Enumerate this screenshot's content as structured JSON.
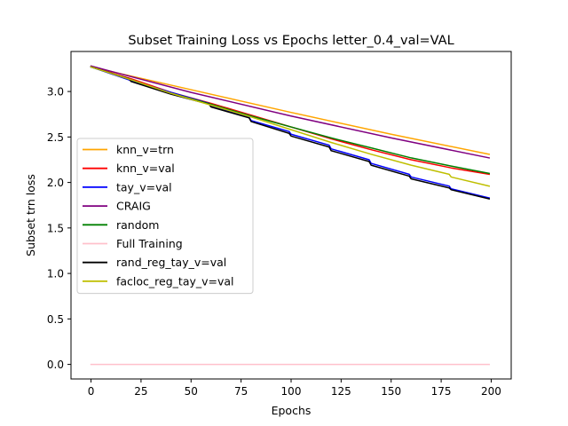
{
  "chart_data": {
    "type": "line",
    "title": "Subset Training Loss vs Epochs letter_0.4_val=VAL",
    "xlabel": "Epochs",
    "ylabel": "Subset trn loss",
    "xlim": [
      -10,
      210
    ],
    "ylim": [
      -0.16,
      3.44
    ],
    "xticks": [
      0,
      25,
      50,
      75,
      100,
      125,
      150,
      175,
      200
    ],
    "yticks": [
      0.0,
      0.5,
      1.0,
      1.5,
      2.0,
      2.5,
      3.0
    ],
    "xtick_labels": [
      "0",
      "25",
      "50",
      "75",
      "100",
      "125",
      "150",
      "175",
      "200"
    ],
    "ytick_labels": [
      "0.0",
      "0.5",
      "1.0",
      "1.5",
      "2.0",
      "2.5",
      "3.0"
    ],
    "grid": false,
    "legend_position": "center-left",
    "series": [
      {
        "name": "knn_v=trn",
        "color": "#ffa500",
        "x": [
          0,
          50,
          100,
          150,
          199
        ],
        "y": [
          3.27,
          3.02,
          2.77,
          2.53,
          2.31
        ]
      },
      {
        "name": "knn_v=val",
        "color": "#ff0000",
        "x": [
          0,
          20,
          40,
          60,
          80,
          100,
          120,
          140,
          160,
          180,
          199
        ],
        "y": [
          3.27,
          3.14,
          2.99,
          2.87,
          2.74,
          2.61,
          2.48,
          2.36,
          2.25,
          2.16,
          2.09
        ]
      },
      {
        "name": "tay_v=val",
        "color": "#0000ff",
        "x": [
          0,
          20,
          40,
          59,
          60,
          79,
          80,
          99,
          100,
          119,
          120,
          139,
          140,
          159,
          160,
          179,
          180,
          199
        ],
        "y": [
          3.27,
          3.12,
          2.99,
          2.87,
          2.84,
          2.72,
          2.68,
          2.56,
          2.53,
          2.41,
          2.37,
          2.25,
          2.21,
          2.09,
          2.06,
          1.96,
          1.93,
          1.83
        ]
      },
      {
        "name": "CRAIG",
        "color": "#800080",
        "x": [
          0,
          50,
          100,
          150,
          199
        ],
        "y": [
          3.28,
          2.99,
          2.73,
          2.49,
          2.27
        ]
      },
      {
        "name": "random",
        "color": "#008000",
        "x": [
          0,
          20,
          40,
          60,
          80,
          100,
          120,
          140,
          160,
          180,
          199
        ],
        "y": [
          3.27,
          3.13,
          2.98,
          2.86,
          2.73,
          2.61,
          2.49,
          2.38,
          2.27,
          2.18,
          2.1
        ]
      },
      {
        "name": "Full Training",
        "color": "#ffc0cb",
        "x": [
          0,
          199
        ],
        "y": [
          0.0,
          0.0
        ]
      },
      {
        "name": "rand_reg_tay_v=val",
        "color": "#000000",
        "x": [
          0,
          19,
          20,
          40,
          59,
          60,
          79,
          80,
          99,
          100,
          119,
          120,
          139,
          140,
          159,
          160,
          179,
          180,
          199
        ],
        "y": [
          3.27,
          3.14,
          3.11,
          2.97,
          2.86,
          2.83,
          2.71,
          2.67,
          2.54,
          2.51,
          2.39,
          2.35,
          2.23,
          2.19,
          2.07,
          2.04,
          1.94,
          1.92,
          1.82
        ]
      },
      {
        "name": "facloc_reg_tay_v=val",
        "color": "#bfbf00",
        "x": [
          0,
          20,
          40,
          60,
          80,
          100,
          120,
          140,
          160,
          179,
          180,
          199
        ],
        "y": [
          3.27,
          3.13,
          2.98,
          2.85,
          2.72,
          2.58,
          2.44,
          2.31,
          2.19,
          2.09,
          2.06,
          1.96
        ]
      }
    ]
  }
}
